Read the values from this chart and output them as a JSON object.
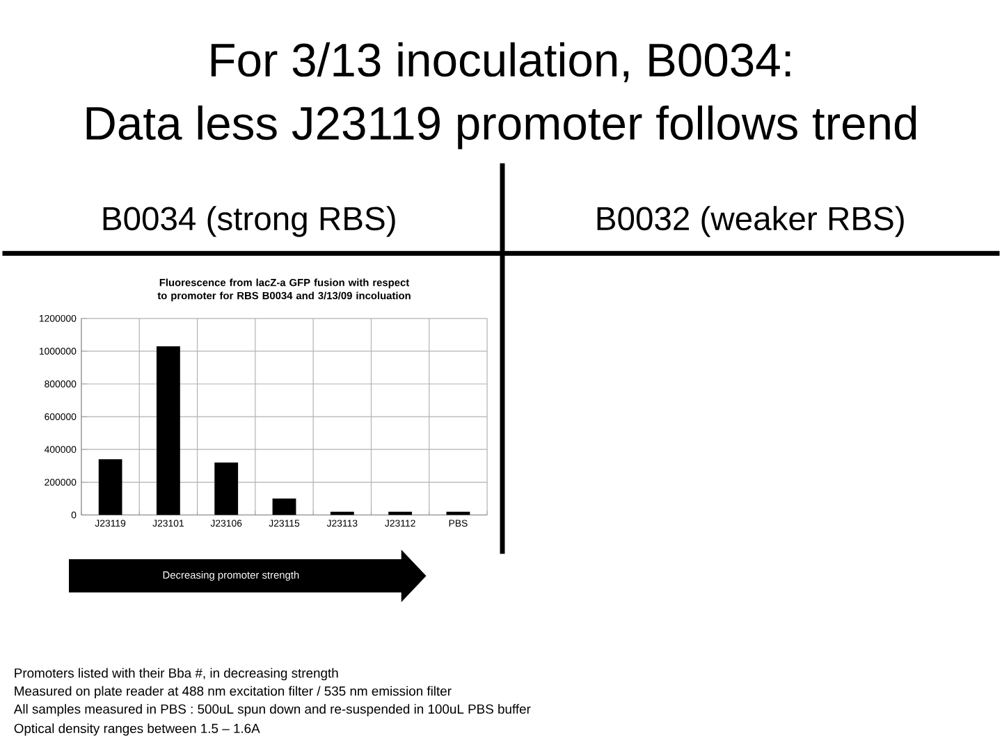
{
  "chart_data": {
    "type": "bar",
    "title": "Fluorescence from lacZ-a GFP fusion with respect to promoter for RBS B0034 and 3/13/09 incoluation",
    "categories": [
      "J23119",
      "J23101",
      "J23106",
      "J23115",
      "J23113",
      "J23112",
      "PBS"
    ],
    "values": [
      340000,
      1030000,
      320000,
      100000,
      20000,
      20000,
      20000
    ],
    "color": "#000000",
    "ylim": [
      0,
      1200000
    ],
    "yticks": [
      0,
      200000,
      400000,
      600000,
      800000,
      1000000,
      1200000
    ],
    "grid": true,
    "annotations": [
      "For 3/13 inoculation, B0034:",
      "Data less J23119 promoter follows trend",
      "B0034 (strong RBS)",
      "B0032 (weaker RBS)",
      "Decreasing promoter strength",
      "Promoters listed with their Bba #, in decreasing strength",
      "Measured on plate reader at 488 nm excitation filter / 535 nm emission filter",
      "All samples measured in PBS : 500uL spun down and re-suspended in 100uL PBS buffer",
      "Optical density ranges between 1.5 – 1.6A"
    ]
  }
}
